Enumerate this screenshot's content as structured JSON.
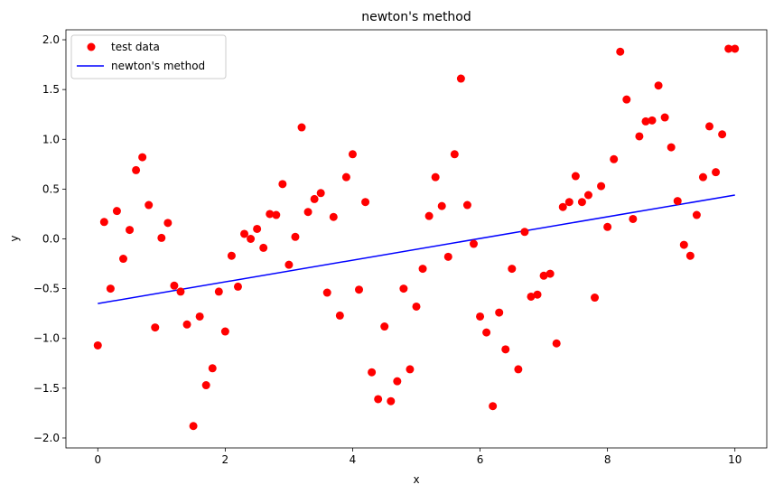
{
  "chart_data": {
    "type": "scatter",
    "title": "newton's method",
    "xlabel": "x",
    "ylabel": "y",
    "xlim": [
      -0.5,
      10.5
    ],
    "ylim": [
      -2.1,
      2.1
    ],
    "xticks": [
      0,
      2,
      4,
      6,
      8,
      10
    ],
    "yticks": [
      -2.0,
      -1.5,
      -1.0,
      -0.5,
      0.0,
      0.5,
      1.0,
      1.5,
      2.0
    ],
    "xtick_labels": [
      "0",
      "2",
      "4",
      "6",
      "8",
      "10"
    ],
    "ytick_labels": [
      "−2.0",
      "−1.5",
      "−1.0",
      "−0.5",
      "0.0",
      "0.5",
      "1.0",
      "1.5",
      "2.0"
    ],
    "legend": {
      "placement": "top-left",
      "entries": [
        "test data",
        "newton's method"
      ]
    },
    "grid": false,
    "series": [
      {
        "name": "test data",
        "kind": "scatter",
        "color": "#ff0000",
        "x": [
          0.0,
          0.1,
          0.2,
          0.3,
          0.4,
          0.5,
          0.6,
          0.7,
          0.8,
          0.9,
          1.0,
          1.1,
          1.2,
          1.3,
          1.4,
          1.5,
          1.6,
          1.7,
          1.8,
          1.9,
          2.0,
          2.1,
          2.2,
          2.3,
          2.4,
          2.5,
          2.6,
          2.7,
          2.8,
          2.9,
          3.0,
          3.1,
          3.2,
          3.3,
          3.4,
          3.5,
          3.6,
          3.7,
          3.8,
          3.9,
          4.0,
          4.1,
          4.2,
          4.3,
          4.4,
          4.5,
          4.6,
          4.7,
          4.8,
          4.9,
          5.0,
          5.1,
          5.2,
          5.3,
          5.4,
          5.5,
          5.6,
          5.7,
          5.8,
          5.9,
          6.0,
          6.1,
          6.2,
          6.3,
          6.4,
          6.5,
          6.6,
          6.7,
          6.8,
          6.9,
          7.0,
          7.1,
          7.2,
          7.3,
          7.4,
          7.5,
          7.6,
          7.7,
          7.8,
          7.9,
          8.0,
          8.1,
          8.2,
          8.3,
          8.4,
          8.5,
          8.6,
          8.7,
          8.8,
          8.9,
          9.0,
          9.1,
          9.2,
          9.3,
          9.4,
          9.5,
          9.6,
          9.7,
          9.8,
          9.9,
          10.0
        ],
        "y": [
          -1.07,
          0.17,
          -0.5,
          0.28,
          -0.2,
          0.09,
          0.69,
          0.82,
          0.34,
          -0.89,
          0.01,
          0.16,
          -0.47,
          -0.53,
          -0.86,
          -1.88,
          -0.78,
          -1.47,
          -1.3,
          -0.53,
          -0.93,
          -0.17,
          -0.48,
          0.05,
          0.0,
          0.1,
          -0.09,
          0.25,
          0.24,
          0.55,
          -0.26,
          0.02,
          1.12,
          0.27,
          0.4,
          0.46,
          -0.54,
          0.22,
          -0.77,
          0.62,
          0.85,
          -0.51,
          0.37,
          -1.34,
          -1.61,
          -0.88,
          -1.63,
          -1.43,
          -0.5,
          -1.31,
          -0.68,
          -0.3,
          0.23,
          0.62,
          0.33,
          -0.18,
          0.85,
          1.61,
          0.34,
          -0.05,
          -0.78,
          -0.94,
          -1.68,
          -0.74,
          -1.11,
          -0.3,
          -1.31,
          0.07,
          -0.58,
          -0.56,
          -0.37,
          -0.35,
          -1.05,
          0.32,
          0.37,
          0.63,
          0.37,
          0.44,
          -0.59,
          0.53,
          0.12,
          0.8,
          1.88,
          1.4,
          0.2,
          1.03,
          1.18,
          1.19,
          1.54,
          1.22,
          0.92,
          0.38,
          -0.06,
          -0.17,
          0.24,
          0.62,
          1.13,
          0.67,
          1.05,
          1.91,
          1.91
        ]
      },
      {
        "name": "newton's method",
        "kind": "line",
        "color": "#0000ff",
        "x": [
          0,
          10
        ],
        "y": [
          -0.65,
          0.44
        ]
      }
    ]
  }
}
